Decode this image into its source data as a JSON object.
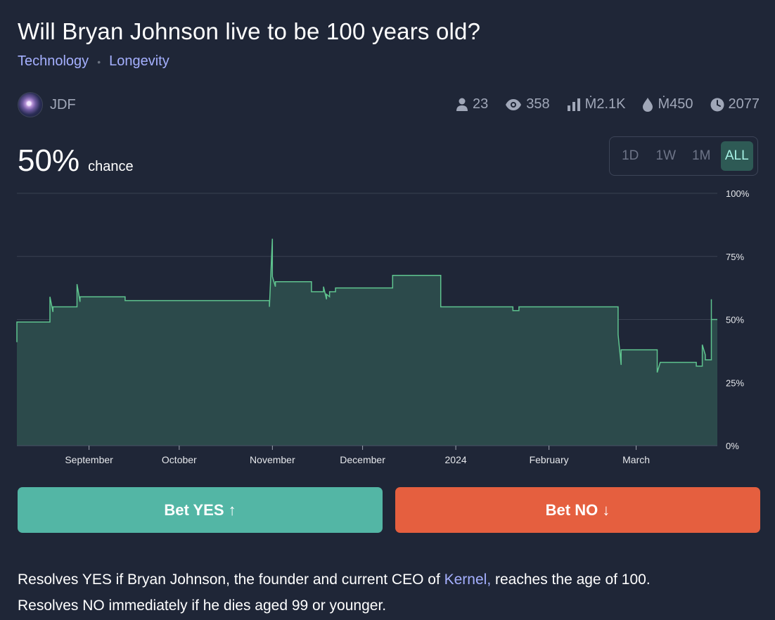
{
  "market": {
    "title": "Will Bryan Johnson live to be 100 years old?",
    "tags": [
      "Technology",
      "Longevity"
    ],
    "tag_separator": "•"
  },
  "creator": {
    "name": "JDF",
    "avatar": "galaxy-avatar"
  },
  "stats": {
    "traders": "23",
    "views": "358",
    "volume": "Ṁ2.1K",
    "liquidity": "Ṁ450",
    "close_year": "2077",
    "icons": [
      "person-icon",
      "eye-icon",
      "bar-chart-icon",
      "droplet-icon",
      "clock-icon"
    ]
  },
  "probability": {
    "value": "50%",
    "label": "chance"
  },
  "time_range": {
    "options": [
      "1D",
      "1W",
      "1M",
      "ALL"
    ],
    "selected": "ALL"
  },
  "chart_data": {
    "type": "area",
    "y_tick_labels": [
      "100%",
      "75%",
      "50%",
      "25%",
      "0%"
    ],
    "y_ticks": [
      100,
      75,
      50,
      25,
      0
    ],
    "ylim": [
      0,
      100
    ],
    "x_tick_labels": [
      "September",
      "October",
      "November",
      "December",
      "2024",
      "February",
      "March"
    ],
    "x_ticks": [
      "2023-09-01",
      "2023-10-01",
      "2023-11-01",
      "2023-12-01",
      "2024-01-01",
      "2024-02-01",
      "2024-03-01"
    ],
    "xlim": [
      "2023-08-08",
      "2024-03-28"
    ],
    "grid": true,
    "series": [
      {
        "points": [
          [
            "2023-08-08",
            41
          ],
          [
            "2023-08-08",
            49
          ],
          [
            "2023-08-19",
            49
          ],
          [
            "2023-08-19",
            59
          ],
          [
            "2023-08-20",
            53
          ],
          [
            "2023-08-20",
            55
          ],
          [
            "2023-08-28",
            55
          ],
          [
            "2023-08-28",
            64
          ],
          [
            "2023-08-29",
            57
          ],
          [
            "2023-08-29",
            59
          ],
          [
            "2023-09-13",
            59
          ],
          [
            "2023-09-13",
            57.5
          ],
          [
            "2023-10-31",
            57.5
          ],
          [
            "2023-10-31",
            55
          ],
          [
            "2023-11-01",
            82
          ],
          [
            "2023-11-01",
            67
          ],
          [
            "2023-11-02",
            63
          ],
          [
            "2023-11-02",
            65
          ],
          [
            "2023-11-14",
            65
          ],
          [
            "2023-11-14",
            61
          ],
          [
            "2023-11-18",
            61
          ],
          [
            "2023-11-18",
            63
          ],
          [
            "2023-11-19",
            58
          ],
          [
            "2023-11-19",
            60
          ],
          [
            "2023-11-20",
            59
          ],
          [
            "2023-11-20",
            61
          ],
          [
            "2023-11-22",
            61
          ],
          [
            "2023-11-22",
            62.5
          ],
          [
            "2023-12-11",
            62.5
          ],
          [
            "2023-12-11",
            67.5
          ],
          [
            "2023-12-27",
            67.5
          ],
          [
            "2023-12-27",
            55
          ],
          [
            "2024-01-20",
            55
          ],
          [
            "2024-01-20",
            53.5
          ],
          [
            "2024-01-22",
            53.5
          ],
          [
            "2024-01-22",
            55
          ],
          [
            "2024-02-24",
            55
          ],
          [
            "2024-02-24",
            44
          ],
          [
            "2024-02-25",
            32
          ],
          [
            "2024-02-25",
            38
          ],
          [
            "2024-03-08",
            38
          ],
          [
            "2024-03-08",
            29
          ],
          [
            "2024-03-09",
            33
          ],
          [
            "2024-03-21",
            33
          ],
          [
            "2024-03-21",
            31.5
          ],
          [
            "2024-03-23",
            31.5
          ],
          [
            "2024-03-23",
            40
          ],
          [
            "2024-03-24",
            36
          ],
          [
            "2024-03-24",
            34
          ],
          [
            "2024-03-26",
            34
          ],
          [
            "2024-03-26",
            58
          ],
          [
            "2024-03-26",
            50
          ],
          [
            "2024-03-28",
            50
          ]
        ],
        "line_color": "#5fc48f",
        "fill_color": "#2c4a4b"
      }
    ]
  },
  "actions": {
    "bet_yes": "Bet YES ↑",
    "bet_no": "Bet NO ↓"
  },
  "description": {
    "part1": "Resolves YES if Bryan Johnson, the founder and current CEO of ",
    "link": "Kernel,",
    "part2": " reaches the age of 100.",
    "line2": "Resolves NO immediately if he dies aged 99 or younger."
  }
}
